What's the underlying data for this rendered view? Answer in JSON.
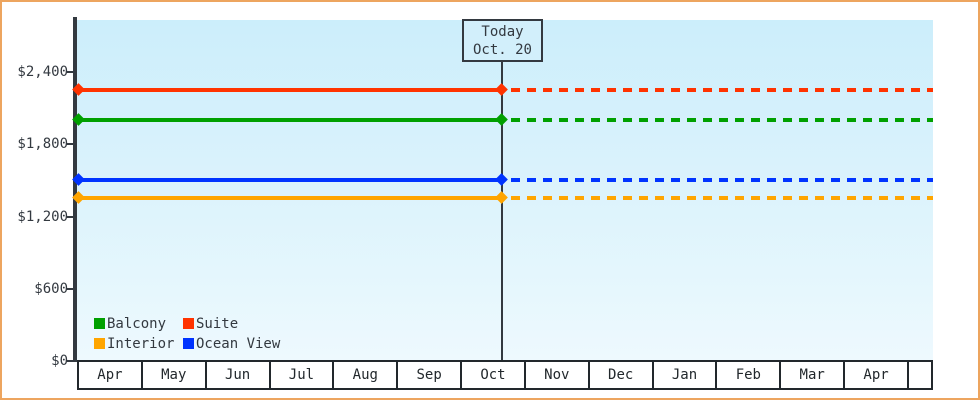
{
  "colors": {
    "frame_border": "#eda55f",
    "axis": "#333940",
    "plot_bg_top": "#cceefb",
    "plot_bg_bottom": "#eef9fe",
    "suite": "#ff3300",
    "balcony": "#00a000",
    "ocean_view": "#0033ff",
    "interior": "#ffa500"
  },
  "chart_data": {
    "type": "line",
    "x_categories": [
      "Apr",
      "May",
      "Jun",
      "Jul",
      "Aug",
      "Sep",
      "Oct",
      "Nov",
      "Dec",
      "Jan",
      "Feb",
      "Mar",
      "Apr"
    ],
    "y_axis": {
      "ticks": [
        {
          "label": "$0",
          "value": 0
        },
        {
          "label": "$600",
          "value": 600
        },
        {
          "label": "$1,200",
          "value": 1200
        },
        {
          "label": "$1,800",
          "value": 1800
        },
        {
          "label": "$2,400",
          "value": 2400
        }
      ],
      "ylim": [
        0,
        2830
      ]
    },
    "series": [
      {
        "name": "Suite",
        "color": "#ff3300",
        "value": 2250
      },
      {
        "name": "Balcony",
        "color": "#00a000",
        "value": 2000
      },
      {
        "name": "Ocean View",
        "color": "#0033ff",
        "value": 1500
      },
      {
        "name": "Interior",
        "color": "#ffa500",
        "value": 1350
      }
    ],
    "style_before_today": "solid",
    "style_after_today": "dashed",
    "today": {
      "line1": "Today",
      "line2": "Oct. 20",
      "month": "Oct",
      "day": 20
    },
    "legend": [
      {
        "label": "Balcony",
        "color": "#00a000"
      },
      {
        "label": "Suite",
        "color": "#ff3300"
      },
      {
        "label": "Interior",
        "color": "#ffa500"
      },
      {
        "label": "Ocean View",
        "color": "#0033ff"
      }
    ],
    "legend_position": "inside-bottom-left",
    "grid": false
  }
}
